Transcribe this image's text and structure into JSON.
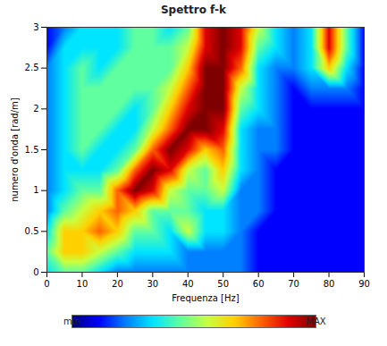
{
  "chart_data": {
    "type": "heatmap",
    "title": "Spettro f-k",
    "x_label": "Frequenza [Hz]",
    "y_label": "numero d'onda [rad/m]",
    "x": [
      0,
      5,
      10,
      15,
      20,
      25,
      30,
      35,
      40,
      45,
      50,
      55,
      60,
      65,
      70,
      75,
      80,
      85,
      90
    ],
    "y": [
      0,
      0.25,
      0.5,
      0.75,
      1,
      1.25,
      1.5,
      1.75,
      2,
      2.25,
      2.5,
      2.75,
      3
    ],
    "values": [
      [
        3,
        4,
        4,
        3,
        2,
        2,
        2,
        2,
        2,
        2,
        2,
        2,
        1,
        1,
        1,
        1,
        1,
        1,
        1
      ],
      [
        4,
        6,
        6,
        5,
        4,
        3,
        3,
        3,
        2,
        2,
        2,
        2,
        1,
        1,
        1,
        1,
        1,
        1,
        1
      ],
      [
        3,
        6,
        6,
        7,
        6,
        4,
        4,
        3,
        5,
        3,
        3,
        2,
        1,
        1,
        1,
        1,
        1,
        1,
        1
      ],
      [
        2,
        4,
        5,
        6,
        7,
        6,
        4,
        4,
        4,
        3,
        3,
        2,
        2,
        1,
        1,
        1,
        1,
        1,
        1
      ],
      [
        2,
        3,
        4,
        4,
        7,
        9,
        8,
        5,
        4,
        4,
        5,
        2,
        2,
        1,
        1,
        1,
        1,
        1,
        1
      ],
      [
        2,
        3,
        3,
        3,
        4,
        7,
        9,
        8,
        5,
        4,
        6,
        3,
        2,
        1,
        1,
        1,
        1,
        1,
        1
      ],
      [
        2,
        3,
        4,
        3,
        3,
        4,
        7,
        9,
        8,
        6,
        7,
        3,
        2,
        2,
        1,
        1,
        1,
        1,
        1
      ],
      [
        2,
        3,
        4,
        4,
        3,
        3,
        5,
        7,
        9,
        9,
        8,
        3,
        2,
        2,
        1,
        1,
        1,
        1,
        1
      ],
      [
        2,
        3,
        4,
        4,
        4,
        3,
        4,
        6,
        8,
        9,
        9,
        4,
        3,
        2,
        1,
        1,
        1,
        1,
        1
      ],
      [
        2,
        3,
        4,
        4,
        4,
        4,
        4,
        5,
        7,
        9,
        9,
        5,
        3,
        2,
        1,
        2,
        2,
        2,
        1
      ],
      [
        2,
        3,
        4,
        3,
        4,
        4,
        4,
        4,
        6,
        9,
        9,
        7,
        3,
        2,
        2,
        3,
        6,
        3,
        1
      ],
      [
        1,
        3,
        3,
        3,
        3,
        4,
        4,
        4,
        5,
        8,
        9,
        8,
        4,
        3,
        2,
        3,
        8,
        4,
        1
      ],
      [
        1,
        2,
        3,
        3,
        3,
        4,
        4,
        3,
        4,
        8,
        9,
        8,
        5,
        3,
        2,
        3,
        8,
        4,
        1
      ]
    ],
    "xlim": [
      0,
      90
    ],
    "ylim": [
      0,
      3
    ],
    "xticks": [
      0,
      10,
      20,
      30,
      40,
      50,
      60,
      70,
      80,
      90
    ],
    "yticks": [
      0,
      0.5,
      1,
      1.5,
      2,
      2.5,
      3
    ],
    "colorbar": {
      "range": [
        0,
        9
      ],
      "ticks": [
        {
          "value": 0,
          "label": "min"
        },
        {
          "value": 9,
          "label": "MAX"
        }
      ]
    }
  }
}
